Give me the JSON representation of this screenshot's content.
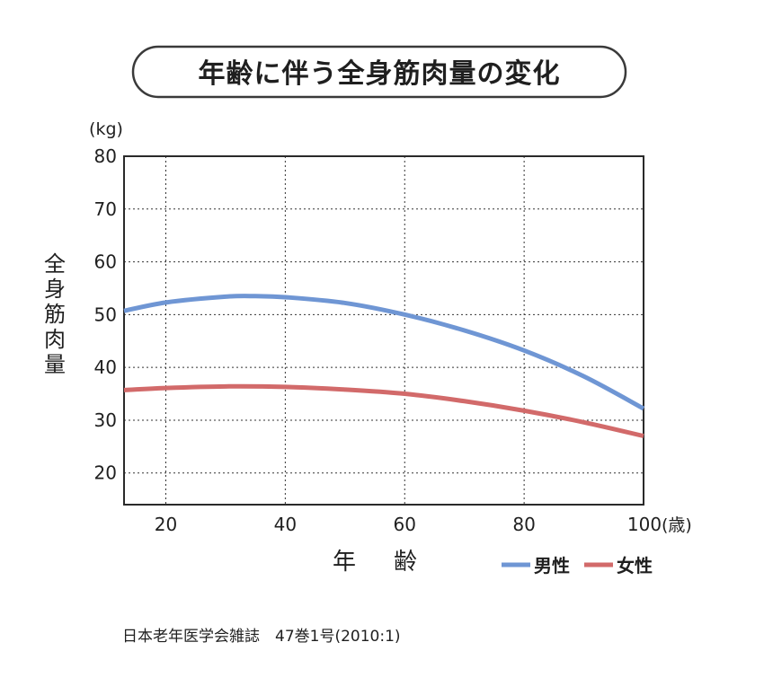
{
  "chart_data": {
    "type": "line",
    "title": "年齢に伴う全身筋肉量の変化",
    "xlabel_chars": [
      "年",
      "齢"
    ],
    "ylabel_chars": [
      "全",
      "身",
      "筋",
      "肉",
      "量"
    ],
    "y_unit": "(kg)",
    "x_unit": "(歳)",
    "xlim": [
      13,
      100
    ],
    "ylim": [
      14,
      80
    ],
    "x_ticks": [
      20,
      40,
      60,
      80,
      100
    ],
    "y_ticks": [
      20,
      30,
      40,
      50,
      60,
      70,
      80
    ],
    "grid": true,
    "legend_position": "bottom-right",
    "series": [
      {
        "name": "男性",
        "color": "#6f96d4",
        "x": [
          13,
          20,
          30,
          35,
          40,
          50,
          60,
          70,
          80,
          90,
          100
        ],
        "y": [
          50.7,
          52.3,
          53.4,
          53.5,
          53.3,
          52.2,
          50.0,
          47.0,
          43.2,
          38.3,
          32.2
        ]
      },
      {
        "name": "女性",
        "color": "#d26a6a",
        "x": [
          13,
          20,
          30,
          40,
          50,
          60,
          70,
          80,
          90,
          100
        ],
        "y": [
          35.7,
          36.1,
          36.4,
          36.3,
          35.8,
          35.0,
          33.6,
          31.8,
          29.6,
          27.0
        ]
      }
    ]
  },
  "source": "日本老年医学会雑誌　47巻1号(2010:1)"
}
